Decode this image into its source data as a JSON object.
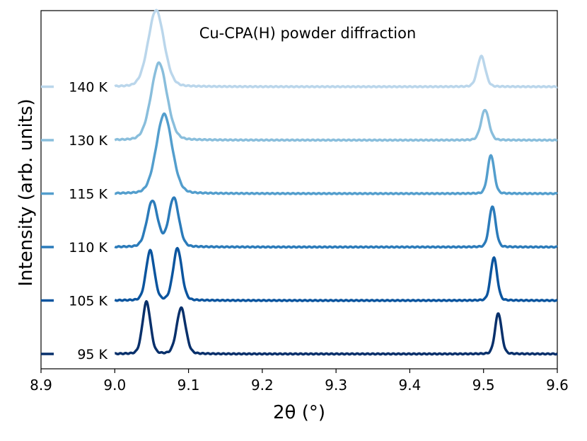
{
  "chart_data": {
    "type": "line",
    "title": "Cu-CPA(H) powder diffraction",
    "xlabel": "2θ (°)",
    "ylabel": "Intensity (arb. units)",
    "xlim": [
      8.9,
      9.6
    ],
    "xticks": [
      "8.9",
      "9.0",
      "9.1",
      "9.2",
      "9.3",
      "9.4",
      "9.5",
      "9.6"
    ],
    "y_ticks_shown": false,
    "grid": false,
    "legend": "labels at left of each trace",
    "series": [
      {
        "name": "95 K",
        "color": "#08306b",
        "peaks": [
          {
            "center": 9.043,
            "height": 0.7,
            "width": 0.0055
          },
          {
            "center": 9.09,
            "height": 0.62,
            "width": 0.0062
          },
          {
            "center": 9.52,
            "height": 0.55,
            "width": 0.0045
          }
        ]
      },
      {
        "name": "105 K",
        "color": "#0b559f",
        "peaks": [
          {
            "center": 9.048,
            "height": 0.67,
            "width": 0.0058
          },
          {
            "center": 9.085,
            "height": 0.7,
            "width": 0.006
          },
          {
            "center": 9.514,
            "height": 0.58,
            "width": 0.0045
          }
        ]
      },
      {
        "name": "110 K",
        "color": "#2b7bba",
        "peaks": [
          {
            "center": 9.051,
            "height": 0.62,
            "width": 0.0075
          },
          {
            "center": 9.08,
            "height": 0.66,
            "width": 0.007
          },
          {
            "center": 9.512,
            "height": 0.55,
            "width": 0.0045
          }
        ]
      },
      {
        "name": "115 K",
        "color": "#539ecd",
        "peaks": [
          {
            "center": 9.067,
            "height": 1.07,
            "width": 0.011
          },
          {
            "center": 9.51,
            "height": 0.52,
            "width": 0.0045
          }
        ]
      },
      {
        "name": "130 K",
        "color": "#89bedc",
        "peaks": [
          {
            "center": 9.06,
            "height": 1.04,
            "width": 0.011
          },
          {
            "center": 9.502,
            "height": 0.41,
            "width": 0.0055
          }
        ]
      },
      {
        "name": "140 K",
        "color": "#bad6eb",
        "peaks": [
          {
            "center": 9.056,
            "height": 1.03,
            "width": 0.011
          },
          {
            "center": 9.497,
            "height": 0.41,
            "width": 0.0055
          }
        ]
      }
    ]
  }
}
